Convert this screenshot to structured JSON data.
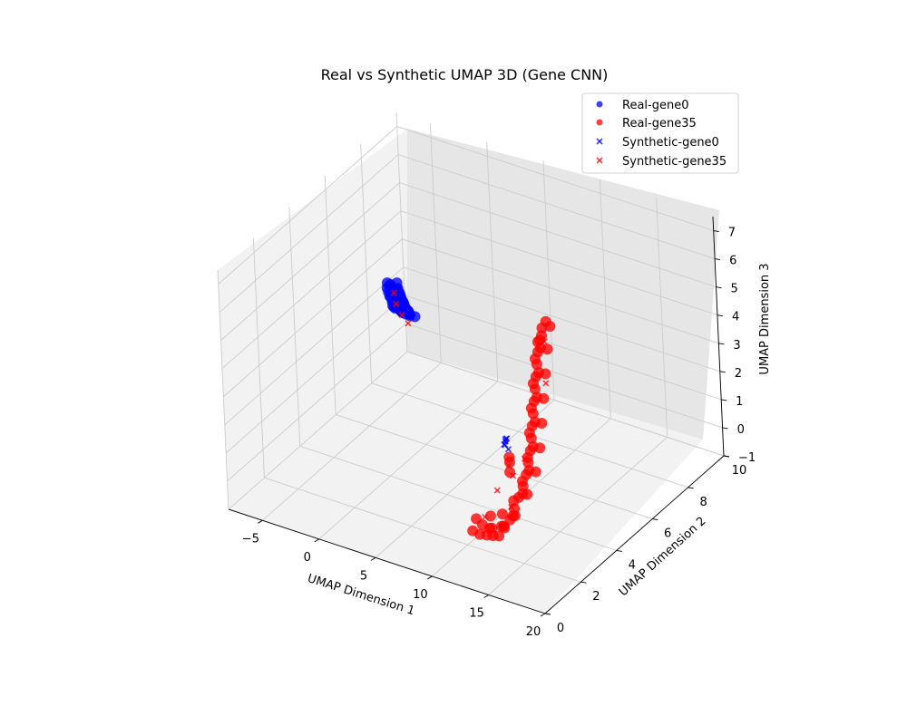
{
  "chart_data": {
    "type": "scatter3d",
    "title": "Real vs Synthetic UMAP 3D (Gene CNN)",
    "xlabel": "UMAP Dimension 1",
    "ylabel": "UMAP Dimension 2",
    "zlabel": "UMAP Dimension 3",
    "xlim": [
      -8,
      20
    ],
    "ylim": [
      0,
      10
    ],
    "zlim": [
      -1,
      7.5
    ],
    "xticks": [
      -5,
      0,
      5,
      10,
      15,
      20
    ],
    "yticks": [
      0,
      2,
      4,
      6,
      8,
      10
    ],
    "zticks": [
      -1,
      0,
      1,
      2,
      3,
      4,
      5,
      6,
      7
    ],
    "grid": true,
    "legend_position": "top-right",
    "colors": {
      "gene0": "#0000ff",
      "gene35": "#ff0000"
    },
    "series": [
      {
        "name": "Real-gene0",
        "marker": "circle",
        "color": "#0000ff",
        "points": [
          [
            -6.5,
            9.0,
            1.2
          ],
          [
            -6.2,
            8.8,
            1.3
          ],
          [
            -5.9,
            8.6,
            1.5
          ],
          [
            -5.6,
            8.4,
            1.6
          ],
          [
            -5.3,
            8.2,
            1.8
          ],
          [
            -5.0,
            8.0,
            2.0
          ],
          [
            -4.7,
            7.8,
            2.1
          ],
          [
            -4.4,
            7.6,
            2.3
          ],
          [
            -4.1,
            7.4,
            2.5
          ],
          [
            -3.8,
            7.2,
            2.6
          ],
          [
            -3.5,
            7.0,
            2.8
          ],
          [
            -3.2,
            6.8,
            3.0
          ],
          [
            -2.9,
            6.6,
            3.1
          ],
          [
            -2.6,
            6.4,
            3.3
          ],
          [
            -2.3,
            6.2,
            3.5
          ],
          [
            -2.0,
            6.0,
            3.7
          ],
          [
            -1.7,
            5.8,
            3.9
          ],
          [
            -1.4,
            5.6,
            4.0
          ],
          [
            -1.1,
            5.4,
            4.2
          ],
          [
            -0.8,
            5.2,
            4.4
          ],
          [
            -0.5,
            5.0,
            4.6
          ],
          [
            -0.2,
            4.8,
            4.8
          ],
          [
            0.1,
            4.6,
            5.0
          ],
          [
            0.4,
            4.4,
            5.2
          ],
          [
            0.7,
            4.2,
            5.4
          ],
          [
            1.0,
            4.0,
            5.6
          ],
          [
            1.3,
            3.8,
            5.8
          ],
          [
            1.6,
            3.6,
            6.0
          ],
          [
            1.9,
            3.4,
            6.2
          ],
          [
            2.2,
            3.2,
            6.4
          ],
          [
            2.5,
            3.0,
            6.6
          ],
          [
            2.8,
            2.8,
            6.8
          ],
          [
            3.1,
            2.6,
            7.0
          ],
          [
            -6.3,
            9.2,
            1.0
          ],
          [
            -5.5,
            8.7,
            1.4
          ],
          [
            -4.6,
            8.0,
            1.9
          ],
          [
            -3.7,
            7.5,
            2.4
          ],
          [
            -2.8,
            6.9,
            2.9
          ],
          [
            -1.9,
            6.3,
            3.5
          ],
          [
            -1.0,
            5.7,
            4.1
          ],
          [
            -0.1,
            5.1,
            4.6
          ],
          [
            0.8,
            4.5,
            5.2
          ],
          [
            1.7,
            3.9,
            5.8
          ],
          [
            2.6,
            3.3,
            6.4
          ],
          [
            3.2,
            2.9,
            6.9
          ],
          [
            -6.6,
            8.7,
            1.5
          ],
          [
            -5.8,
            8.2,
            1.9
          ],
          [
            -4.9,
            7.6,
            2.3
          ],
          [
            -4.0,
            7.0,
            2.8
          ],
          [
            -3.1,
            6.4,
            3.3
          ],
          [
            -2.2,
            5.9,
            3.8
          ],
          [
            -1.3,
            5.3,
            4.3
          ],
          [
            -0.4,
            4.7,
            4.9
          ],
          [
            0.5,
            4.1,
            5.4
          ],
          [
            1.4,
            3.5,
            6.0
          ],
          [
            2.3,
            2.9,
            6.6
          ],
          [
            3.0,
            2.5,
            7.1
          ],
          [
            -6.0,
            9.3,
            0.9
          ],
          [
            -5.1,
            8.5,
            1.5
          ],
          [
            -4.2,
            7.9,
            2.1
          ],
          [
            -3.3,
            7.3,
            2.6
          ],
          [
            -2.4,
            6.7,
            3.1
          ],
          [
            -1.5,
            6.1,
            3.6
          ],
          [
            -0.6,
            5.5,
            4.2
          ],
          [
            0.3,
            4.9,
            4.7
          ],
          [
            1.2,
            4.3,
            5.3
          ],
          [
            2.1,
            3.7,
            5.9
          ],
          [
            2.9,
            3.1,
            6.5
          ]
        ]
      },
      {
        "name": "Real-gene35",
        "marker": "circle",
        "color": "#ff0000",
        "points": [
          [
            12.5,
            0.8,
            0.5
          ],
          [
            12.8,
            1.0,
            0.3
          ],
          [
            13.1,
            1.2,
            0.2
          ],
          [
            13.3,
            1.4,
            0.1
          ],
          [
            13.5,
            1.6,
            0.0
          ],
          [
            13.7,
            1.8,
            0.2
          ],
          [
            13.9,
            2.0,
            0.4
          ],
          [
            14.0,
            2.2,
            0.7
          ],
          [
            14.1,
            2.4,
            1.0
          ],
          [
            14.2,
            2.6,
            1.3
          ],
          [
            14.2,
            2.8,
            1.6
          ],
          [
            14.1,
            3.0,
            1.9
          ],
          [
            14.0,
            3.2,
            2.2
          ],
          [
            13.8,
            3.4,
            2.5
          ],
          [
            13.6,
            3.6,
            2.8
          ],
          [
            13.4,
            3.8,
            3.1
          ],
          [
            13.2,
            4.0,
            3.4
          ],
          [
            13.0,
            4.2,
            3.7
          ],
          [
            12.8,
            4.4,
            4.0
          ],
          [
            12.6,
            4.6,
            4.3
          ],
          [
            12.4,
            4.8,
            4.6
          ],
          [
            12.3,
            5.0,
            4.9
          ],
          [
            12.2,
            5.2,
            5.2
          ],
          [
            12.4,
            5.3,
            5.4
          ],
          [
            12.6,
            5.4,
            5.2
          ],
          [
            12.9,
            1.1,
            0.6
          ],
          [
            13.2,
            1.3,
            0.4
          ],
          [
            13.6,
            1.7,
            0.3
          ],
          [
            14.0,
            2.1,
            0.5
          ],
          [
            14.3,
            2.5,
            1.1
          ],
          [
            14.3,
            2.9,
            1.7
          ],
          [
            14.1,
            3.3,
            2.3
          ],
          [
            13.7,
            3.7,
            2.9
          ],
          [
            13.3,
            4.1,
            3.5
          ],
          [
            12.9,
            4.5,
            4.1
          ],
          [
            12.5,
            4.9,
            4.7
          ],
          [
            12.3,
            5.1,
            5.0
          ],
          [
            12.7,
            0.9,
            0.9
          ],
          [
            13.0,
            1.5,
            0.7
          ],
          [
            13.4,
            1.9,
            0.6
          ],
          [
            13.8,
            2.3,
            0.9
          ],
          [
            14.0,
            2.7,
            1.4
          ],
          [
            13.9,
            3.1,
            2.0
          ],
          [
            13.5,
            3.5,
            2.6
          ],
          [
            13.1,
            3.9,
            3.2
          ],
          [
            12.7,
            4.3,
            3.8
          ],
          [
            12.3,
            4.7,
            4.4
          ],
          [
            12.1,
            5.0,
            4.8
          ],
          [
            12.9,
            1.6,
            0.2
          ],
          [
            13.3,
            2.0,
            0.1
          ],
          [
            13.7,
            2.4,
            0.3
          ],
          [
            14.2,
            2.8,
            0.9
          ],
          [
            14.4,
            3.2,
            1.5
          ],
          [
            14.2,
            3.6,
            2.1
          ],
          [
            13.8,
            4.0,
            2.7
          ],
          [
            13.4,
            4.4,
            3.3
          ],
          [
            13.0,
            4.8,
            3.9
          ],
          [
            12.6,
            5.2,
            4.5
          ],
          [
            11.6,
            3.5,
            1.3
          ],
          [
            11.9,
            3.3,
            1.1
          ],
          [
            11.4,
            3.6,
            1.4
          ]
        ]
      },
      {
        "name": "Synthetic-gene0",
        "marker": "x",
        "color": "#0000ff",
        "points": [
          [
            -5.8,
            8.8,
            1.4
          ],
          [
            -3.0,
            6.8,
            3.0
          ],
          [
            -0.5,
            5.0,
            4.6
          ],
          [
            1.8,
            3.6,
            6.0
          ],
          [
            11.0,
            3.6,
            1.8
          ],
          [
            11.3,
            3.5,
            2.0
          ],
          [
            11.6,
            3.4,
            2.2
          ],
          [
            11.8,
            3.2,
            2.3
          ],
          [
            12.2,
            3.0,
            2.5
          ],
          [
            12.6,
            2.7,
            2.5
          ],
          [
            11.2,
            3.7,
            1.6
          ]
        ]
      },
      {
        "name": "Synthetic-gene35",
        "marker": "x",
        "color": "#ff0000",
        "points": [
          [
            -5.3,
            8.5,
            1.2
          ],
          [
            -2.5,
            6.5,
            3.0
          ],
          [
            0.2,
            4.6,
            4.8
          ],
          [
            2.9,
            2.9,
            6.5
          ],
          [
            12.5,
            1.5,
            0.6
          ],
          [
            13.0,
            2.8,
            1.4
          ],
          [
            12.0,
            3.2,
            1.4
          ],
          [
            12.7,
            5.0,
            4.9
          ],
          [
            13.8,
            3.0,
            2.0
          ],
          [
            12.2,
            2.4,
            1.0
          ],
          [
            13.5,
            4.5,
            3.8
          ],
          [
            13.9,
            2.1,
            0.8
          ]
        ]
      }
    ]
  }
}
